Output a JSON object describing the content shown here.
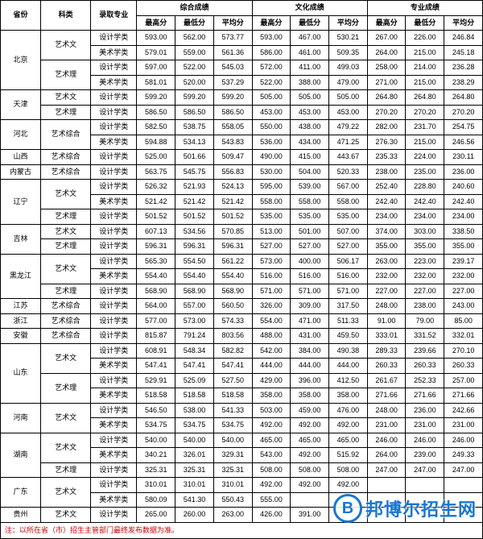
{
  "headers": {
    "province": "省份",
    "category": "科类",
    "major": "录取专业",
    "groups": [
      {
        "label": "综合成绩",
        "sub": [
          "最高分",
          "最低分",
          "平均分"
        ]
      },
      {
        "label": "文化成绩",
        "sub": [
          "最高分",
          "最低分",
          "平均分"
        ]
      },
      {
        "label": "专业成绩",
        "sub": [
          "最高分",
          "最低分",
          "平均分"
        ]
      }
    ]
  },
  "majors": {
    "design": "设计学类",
    "art": "美术学类"
  },
  "categories": {
    "yw": "艺术文",
    "yl": "艺术理",
    "yzh": "艺术综合"
  },
  "rows": [
    {
      "prov": "北京",
      "provSpan": 4,
      "cat": "yw",
      "catSpan": 2,
      "major": "design",
      "v": [
        "593.00",
        "562.00",
        "573.77",
        "593.00",
        "467.00",
        "530.21",
        "267.00",
        "226.00",
        "246.84"
      ]
    },
    {
      "major": "art",
      "v": [
        "579.01",
        "559.00",
        "561.36",
        "586.00",
        "461.00",
        "509.35",
        "264.00",
        "215.00",
        "245.18"
      ]
    },
    {
      "cat": "yl",
      "catSpan": 2,
      "major": "design",
      "v": [
        "597.00",
        "522.00",
        "545.03",
        "572.00",
        "411.00",
        "499.03",
        "258.00",
        "214.00",
        "236.28"
      ]
    },
    {
      "major": "art",
      "v": [
        "581.01",
        "520.00",
        "537.29",
        "522.00",
        "388.00",
        "479.00",
        "271.00",
        "215.00",
        "238.29"
      ]
    },
    {
      "prov": "天津",
      "provSpan": 2,
      "cat": "yw",
      "catSpan": 1,
      "major": "design",
      "v": [
        "599.20",
        "599.20",
        "599.20",
        "505.00",
        "505.00",
        "505.00",
        "264.80",
        "264.80",
        "264.80"
      ]
    },
    {
      "cat": "yl",
      "catSpan": 1,
      "major": "design",
      "v": [
        "586.50",
        "586.50",
        "586.50",
        "453.00",
        "453.00",
        "453.00",
        "270.20",
        "270.20",
        "270.20"
      ]
    },
    {
      "prov": "河北",
      "provSpan": 2,
      "cat": "yzh",
      "catSpan": 2,
      "major": "design",
      "v": [
        "582.50",
        "538.75",
        "558.05",
        "550.00",
        "438.00",
        "479.22",
        "282.00",
        "231.70",
        "254.75"
      ]
    },
    {
      "major": "art",
      "v": [
        "594.88",
        "534.13",
        "543.83",
        "536.00",
        "434.00",
        "471.25",
        "276.30",
        "215.00",
        "246.56"
      ]
    },
    {
      "prov": "山西",
      "provSpan": 1,
      "cat": "yzh",
      "catSpan": 1,
      "major": "design",
      "v": [
        "525.00",
        "501.66",
        "509.47",
        "490.00",
        "415.00",
        "443.67",
        "235.33",
        "224.00",
        "230.11"
      ]
    },
    {
      "prov": "内蒙古",
      "provSpan": 1,
      "cat": "yzh",
      "catSpan": 1,
      "major": "design",
      "v": [
        "563.75",
        "545.75",
        "556.83",
        "530.00",
        "504.00",
        "520.33",
        "238.00",
        "235.00",
        "236.00"
      ]
    },
    {
      "prov": "辽宁",
      "provSpan": 3,
      "cat": "yw",
      "catSpan": 2,
      "major": "design",
      "v": [
        "526.32",
        "521.93",
        "524.13",
        "595.00",
        "539.00",
        "567.00",
        "252.40",
        "228.80",
        "240.60"
      ]
    },
    {
      "major": "art",
      "v": [
        "521.42",
        "521.42",
        "521.42",
        "558.00",
        "558.00",
        "558.00",
        "242.40",
        "242.40",
        "242.40"
      ]
    },
    {
      "cat": "yl",
      "catSpan": 1,
      "major": "design",
      "v": [
        "501.52",
        "501.52",
        "501.52",
        "535.00",
        "535.00",
        "535.00",
        "234.00",
        "234.00",
        "234.00"
      ]
    },
    {
      "prov": "吉林",
      "provSpan": 2,
      "cat": "yw",
      "catSpan": 1,
      "major": "design",
      "v": [
        "607.13",
        "534.56",
        "570.85",
        "513.00",
        "501.00",
        "507.00",
        "374.00",
        "303.00",
        "338.50"
      ]
    },
    {
      "cat": "yl",
      "catSpan": 1,
      "major": "design",
      "v": [
        "596.31",
        "596.31",
        "596.31",
        "527.00",
        "527.00",
        "527.00",
        "355.00",
        "355.00",
        "355.00"
      ]
    },
    {
      "prov": "黑龙江",
      "provSpan": 3,
      "cat": "yw",
      "catSpan": 2,
      "major": "design",
      "v": [
        "565.30",
        "554.50",
        "561.22",
        "573.00",
        "400.00",
        "506.17",
        "263.00",
        "223.00",
        "239.17"
      ]
    },
    {
      "major": "art",
      "v": [
        "554.40",
        "554.40",
        "554.40",
        "516.00",
        "516.00",
        "516.00",
        "232.00",
        "232.00",
        "232.00"
      ]
    },
    {
      "cat": "yl",
      "catSpan": 1,
      "major": "design",
      "v": [
        "568.90",
        "568.90",
        "568.90",
        "571.00",
        "571.00",
        "571.00",
        "227.00",
        "227.00",
        "227.00"
      ]
    },
    {
      "prov": "江苏",
      "provSpan": 1,
      "cat": "yzh",
      "catSpan": 1,
      "major": "design",
      "v": [
        "564.00",
        "557.00",
        "560.50",
        "326.00",
        "309.00",
        "317.50",
        "248.00",
        "238.00",
        "243.00"
      ]
    },
    {
      "prov": "浙江",
      "provSpan": 1,
      "cat": "yzh",
      "catSpan": 1,
      "major": "design",
      "v": [
        "577.00",
        "573.00",
        "574.33",
        "554.00",
        "471.00",
        "511.33",
        "91.00",
        "79.00",
        "85.00"
      ]
    },
    {
      "prov": "安徽",
      "provSpan": 1,
      "cat": "yzh",
      "catSpan": 1,
      "major": "design",
      "v": [
        "815.87",
        "791.24",
        "803.56",
        "488.00",
        "431.00",
        "459.50",
        "333.01",
        "331.52",
        "332.01"
      ]
    },
    {
      "prov": "山东",
      "provSpan": 4,
      "cat": "yw",
      "catSpan": 2,
      "major": "design",
      "v": [
        "608.91",
        "548.34",
        "582.82",
        "542.00",
        "384.00",
        "490.38",
        "289.33",
        "239.66",
        "270.10"
      ]
    },
    {
      "major": "art",
      "v": [
        "547.41",
        "547.41",
        "547.41",
        "444.00",
        "444.00",
        "444.00",
        "260.33",
        "260.33",
        "260.33"
      ]
    },
    {
      "cat": "yl",
      "catSpan": 2,
      "major": "design",
      "v": [
        "529.91",
        "525.09",
        "527.50",
        "429.00",
        "396.00",
        "412.50",
        "261.67",
        "252.33",
        "257.00"
      ]
    },
    {
      "major": "art",
      "v": [
        "518.58",
        "518.58",
        "518.58",
        "358.00",
        "358.00",
        "358.00",
        "271.66",
        "271.66",
        "271.66"
      ]
    },
    {
      "prov": "河南",
      "provSpan": 2,
      "cat": "yw",
      "catSpan": 2,
      "major": "design",
      "v": [
        "546.50",
        "538.00",
        "541.33",
        "503.00",
        "459.00",
        "476.00",
        "248.00",
        "236.00",
        "242.66"
      ]
    },
    {
      "major": "art",
      "v": [
        "534.75",
        "534.75",
        "534.75",
        "492.00",
        "492.00",
        "492.00",
        "231.00",
        "231.00",
        "231.00"
      ]
    },
    {
      "prov": "湖南",
      "provSpan": 3,
      "cat": "yw",
      "catSpan": 2,
      "major": "design",
      "v": [
        "540.00",
        "540.00",
        "540.00",
        "465.00",
        "465.00",
        "465.00",
        "246.00",
        "246.00",
        "246.00"
      ]
    },
    {
      "major": "art",
      "v": [
        "340.21",
        "326.01",
        "329.31",
        "543.00",
        "492.00",
        "515.92",
        "264.00",
        "239.00",
        "249.33"
      ]
    },
    {
      "cat": "yl",
      "catSpan": 1,
      "major": "design",
      "v": [
        "325.31",
        "325.31",
        "325.31",
        "508.00",
        "508.00",
        "508.00",
        "247.00",
        "247.00",
        "247.00"
      ]
    },
    {
      "prov": "广东",
      "provSpan": 2,
      "cat": "yw",
      "catSpan": 2,
      "major": "design",
      "v": [
        "310.01",
        "310.01",
        "310.01",
        "492.00",
        "492.00",
        "492.00",
        "",
        "",
        ""
      ]
    },
    {
      "major": "art",
      "v": [
        "580.09",
        "541.30",
        "550.43",
        "555.00",
        "",
        "",
        "",
        "",
        ""
      ]
    },
    {
      "prov": "贵州",
      "provSpan": 1,
      "cat": "yw",
      "catSpan": 1,
      "major": "design",
      "v": [
        "265.00",
        "260.00",
        "263.00",
        "426.00",
        "391.00",
        "",
        "",
        "",
        ""
      ]
    }
  ],
  "footnote": "注：以所在省（市）招生主管部门最终发布数据为准。",
  "watermark": {
    "badge": "B",
    "text": "邦博尔招生网"
  }
}
